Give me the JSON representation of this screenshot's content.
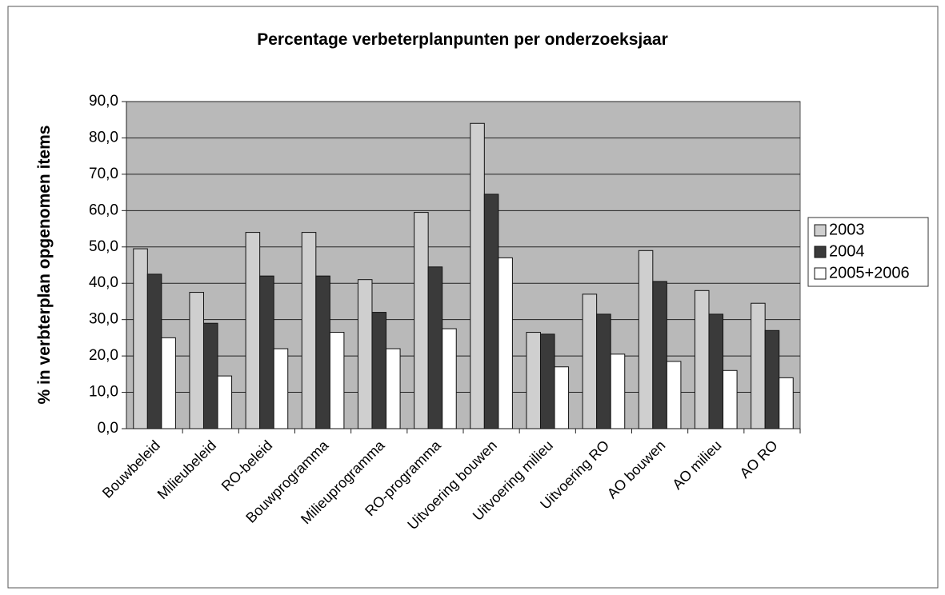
{
  "chart_data": {
    "type": "bar",
    "title": "Percentage verbeterplanpunten per onderzoeksjaar",
    "y_label": "% in verbterplan opgenomen items",
    "categories": [
      "Bouwbeleid",
      "Milieubeleid",
      "RO-beleid",
      "Bouwprogramma",
      "Milieuprogramma",
      "RO-programma",
      "Uitvoering bouwen",
      "Uitvoering milieu",
      "Uitvoering RO",
      "AO bouwen",
      "AO milieu",
      "AO RO"
    ],
    "series": [
      {
        "name": "2003",
        "color": "#cfcfcf",
        "values": [
          49.5,
          37.5,
          54,
          54,
          41,
          59.5,
          84,
          26.5,
          37,
          49,
          38,
          34.5
        ]
      },
      {
        "name": "2004",
        "color": "#3a3a3a",
        "values": [
          42.5,
          29,
          42,
          42,
          32,
          44.5,
          64.5,
          26,
          31.5,
          40.5,
          31.5,
          27
        ]
      },
      {
        "name": "2005+2006",
        "color": "#ffffff",
        "values": [
          25,
          14.5,
          22,
          26.5,
          22,
          27.5,
          47,
          17,
          20.5,
          18.5,
          16,
          14
        ]
      }
    ],
    "ylim": [
      0,
      90
    ],
    "yticks": [
      {
        "value": 0,
        "label": "0,0"
      },
      {
        "value": 10,
        "label": "10,0"
      },
      {
        "value": 20,
        "label": "20,0"
      },
      {
        "value": 30,
        "label": "30,0"
      },
      {
        "value": 40,
        "label": "40,0"
      },
      {
        "value": 50,
        "label": "50,0"
      },
      {
        "value": 60,
        "label": "60,0"
      },
      {
        "value": 70,
        "label": "70,0"
      },
      {
        "value": 80,
        "label": "80,0"
      },
      {
        "value": 90,
        "label": "90,0"
      }
    ],
    "grid": true,
    "legend": "right",
    "plot_background": "#b9b9b9"
  }
}
